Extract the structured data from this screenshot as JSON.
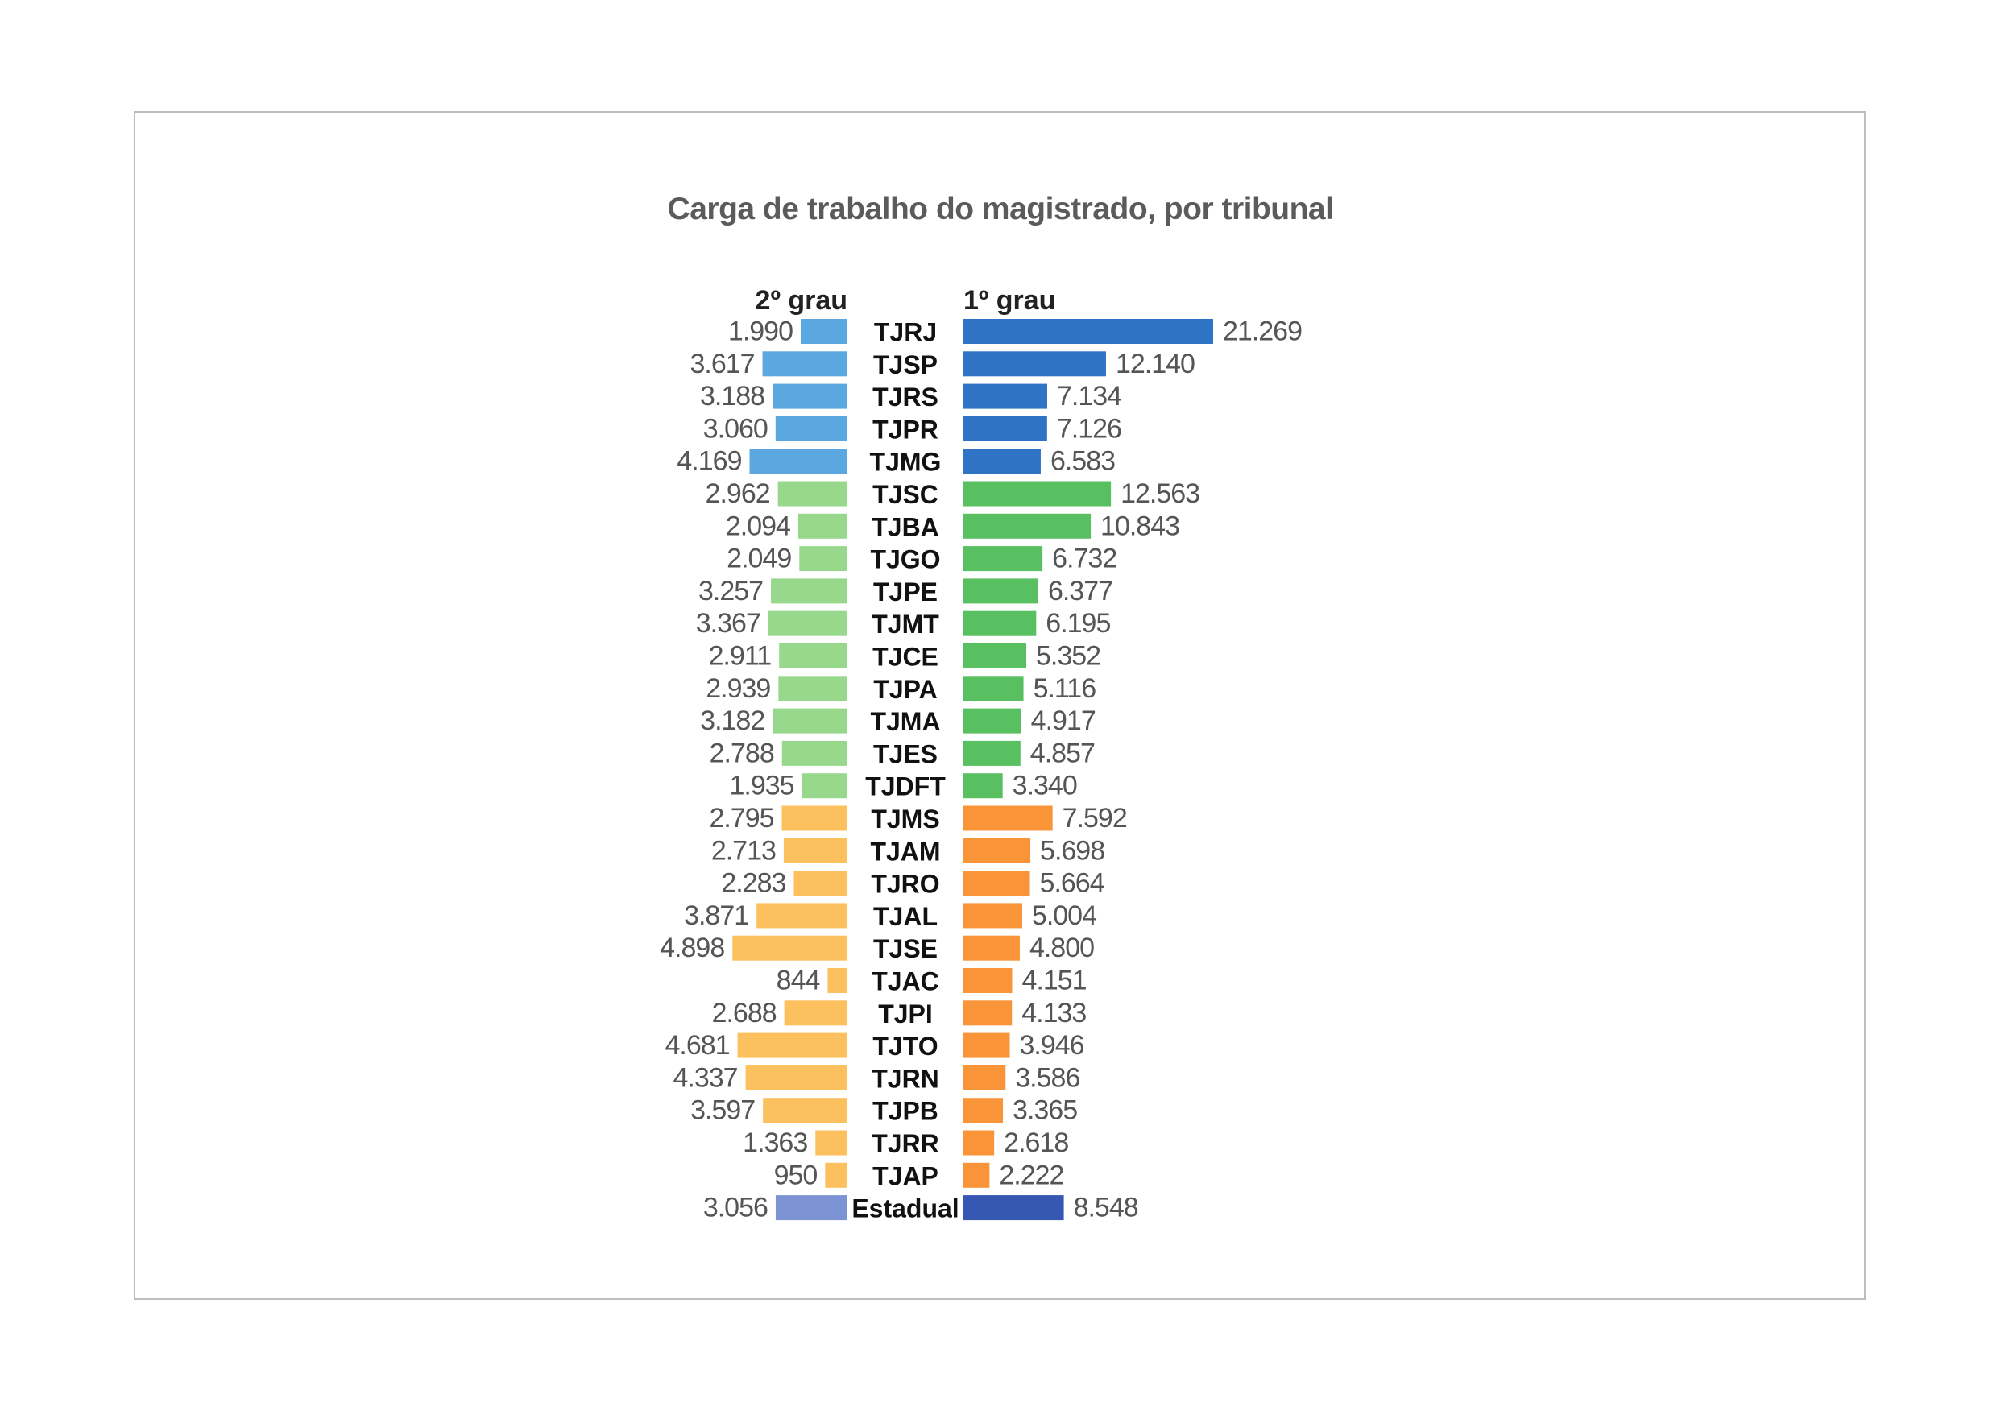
{
  "chart_data": {
    "type": "bar",
    "title": "Carga de trabalho do magistrado, por tribunal",
    "left_header": "2º grau",
    "right_header": "1º grau",
    "categories": [
      "TJRJ",
      "TJSP",
      "TJRS",
      "TJPR",
      "TJMG",
      "TJSC",
      "TJBA",
      "TJGO",
      "TJPE",
      "TJMT",
      "TJCE",
      "TJPA",
      "TJMA",
      "TJES",
      "TJDFT",
      "TJMS",
      "TJAM",
      "TJRO",
      "TJAL",
      "TJSE",
      "TJAC",
      "TJPI",
      "TJTO",
      "TJRN",
      "TJPB",
      "TJRR",
      "TJAP",
      "Estadual"
    ],
    "groups": [
      "blue",
      "blue",
      "blue",
      "blue",
      "blue",
      "green",
      "green",
      "green",
      "green",
      "green",
      "green",
      "green",
      "green",
      "green",
      "green",
      "orange",
      "orange",
      "orange",
      "orange",
      "orange",
      "orange",
      "orange",
      "orange",
      "orange",
      "orange",
      "orange",
      "orange",
      "total"
    ],
    "series": [
      {
        "name": "2º grau",
        "values": [
          1990,
          3617,
          3188,
          3060,
          4169,
          2962,
          2094,
          2049,
          3257,
          3367,
          2911,
          2939,
          3182,
          2788,
          1935,
          2795,
          2713,
          2283,
          3871,
          4898,
          844,
          2688,
          4681,
          4337,
          3597,
          1363,
          950,
          3056
        ],
        "labels": [
          "1.990",
          "3.617",
          "3.188",
          "3.060",
          "4.169",
          "2.962",
          "2.094",
          "2.049",
          "3.257",
          "3.367",
          "2.911",
          "2.939",
          "3.182",
          "2.788",
          "1.935",
          "2.795",
          "2.713",
          "2.283",
          "3.871",
          "4.898",
          "844",
          "2.688",
          "4.681",
          "4.337",
          "3.597",
          "1.363",
          "950",
          "3.056"
        ]
      },
      {
        "name": "1º grau",
        "values": [
          21269,
          12140,
          7134,
          7126,
          6583,
          12563,
          10843,
          6732,
          6377,
          6195,
          5352,
          5116,
          4917,
          4857,
          3340,
          7592,
          5698,
          5664,
          5004,
          4800,
          4151,
          4133,
          3946,
          3586,
          3365,
          2618,
          2222,
          8548
        ],
        "labels": [
          "21.269",
          "12.140",
          "7.134",
          "7.126",
          "6.583",
          "12.563",
          "10.843",
          "6.732",
          "6.377",
          "6.195",
          "5.352",
          "5.116",
          "4.917",
          "4.857",
          "3.340",
          "7.592",
          "5.698",
          "5.664",
          "5.004",
          "4.800",
          "4.151",
          "4.133",
          "3.946",
          "3.586",
          "3.365",
          "2.618",
          "2.222",
          "8.548"
        ]
      }
    ],
    "colors": {
      "blue": {
        "left": "#5ba8e0",
        "right": "#2f73c4"
      },
      "green": {
        "left": "#98d88d",
        "right": "#58c060"
      },
      "orange": {
        "left": "#fcc05e",
        "right": "#fa9438"
      },
      "total": {
        "left": "#7b93d2",
        "right": "#3758b2"
      }
    },
    "grid": false,
    "legend": "none"
  }
}
